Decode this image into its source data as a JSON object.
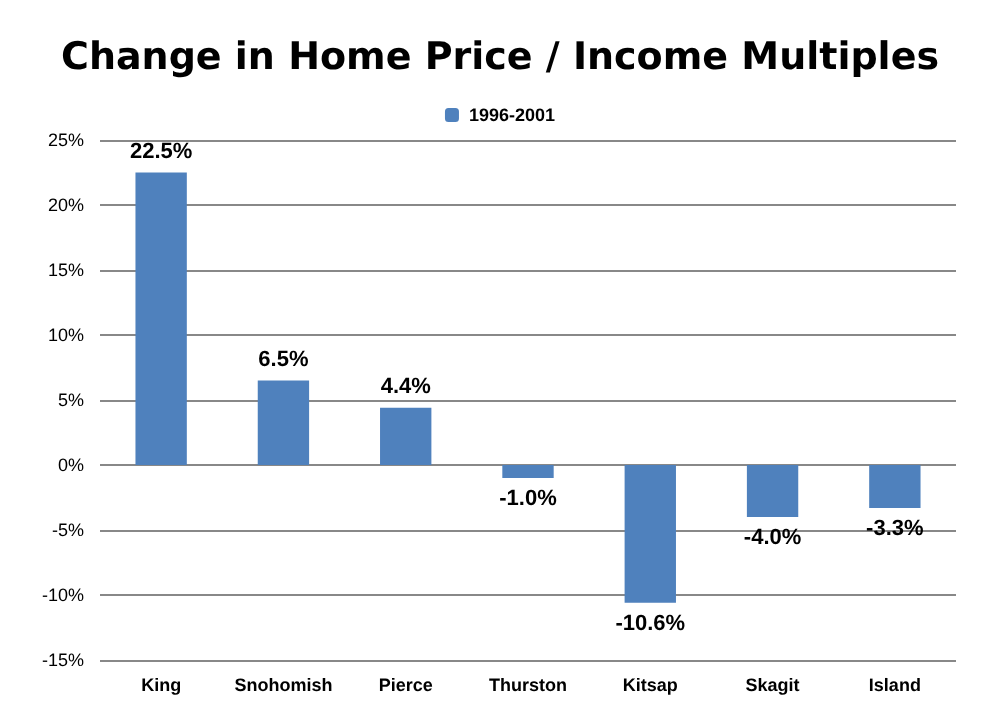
{
  "chart_data": {
    "type": "bar",
    "title": "Change in Home Price / Income Multiples",
    "categories": [
      "King",
      "Snohomish",
      "Pierce",
      "Thurston",
      "Kitsap",
      "Skagit",
      "Island"
    ],
    "series": [
      {
        "name": "1996-2001",
        "color": "#4f81bd",
        "values": [
          22.5,
          6.5,
          4.4,
          -1.0,
          -10.6,
          -4.0,
          -3.3
        ],
        "value_labels": [
          "22.5%",
          "6.5%",
          "4.4%",
          "-1.0%",
          "-10.6%",
          "-4.0%",
          "-3.3%"
        ]
      }
    ],
    "ylim": [
      -15,
      25
    ],
    "yticks": [
      {
        "value": -15,
        "label": "-15%"
      },
      {
        "value": -10,
        "label": "-10%"
      },
      {
        "value": -5,
        "label": "-5%"
      },
      {
        "value": 0,
        "label": "0%"
      },
      {
        "value": 5,
        "label": "5%"
      },
      {
        "value": 10,
        "label": "10%"
      },
      {
        "value": 15,
        "label": "15%"
      },
      {
        "value": 20,
        "label": "20%"
      },
      {
        "value": 25,
        "label": "25%"
      }
    ],
    "grid": "y",
    "legend": "top"
  }
}
